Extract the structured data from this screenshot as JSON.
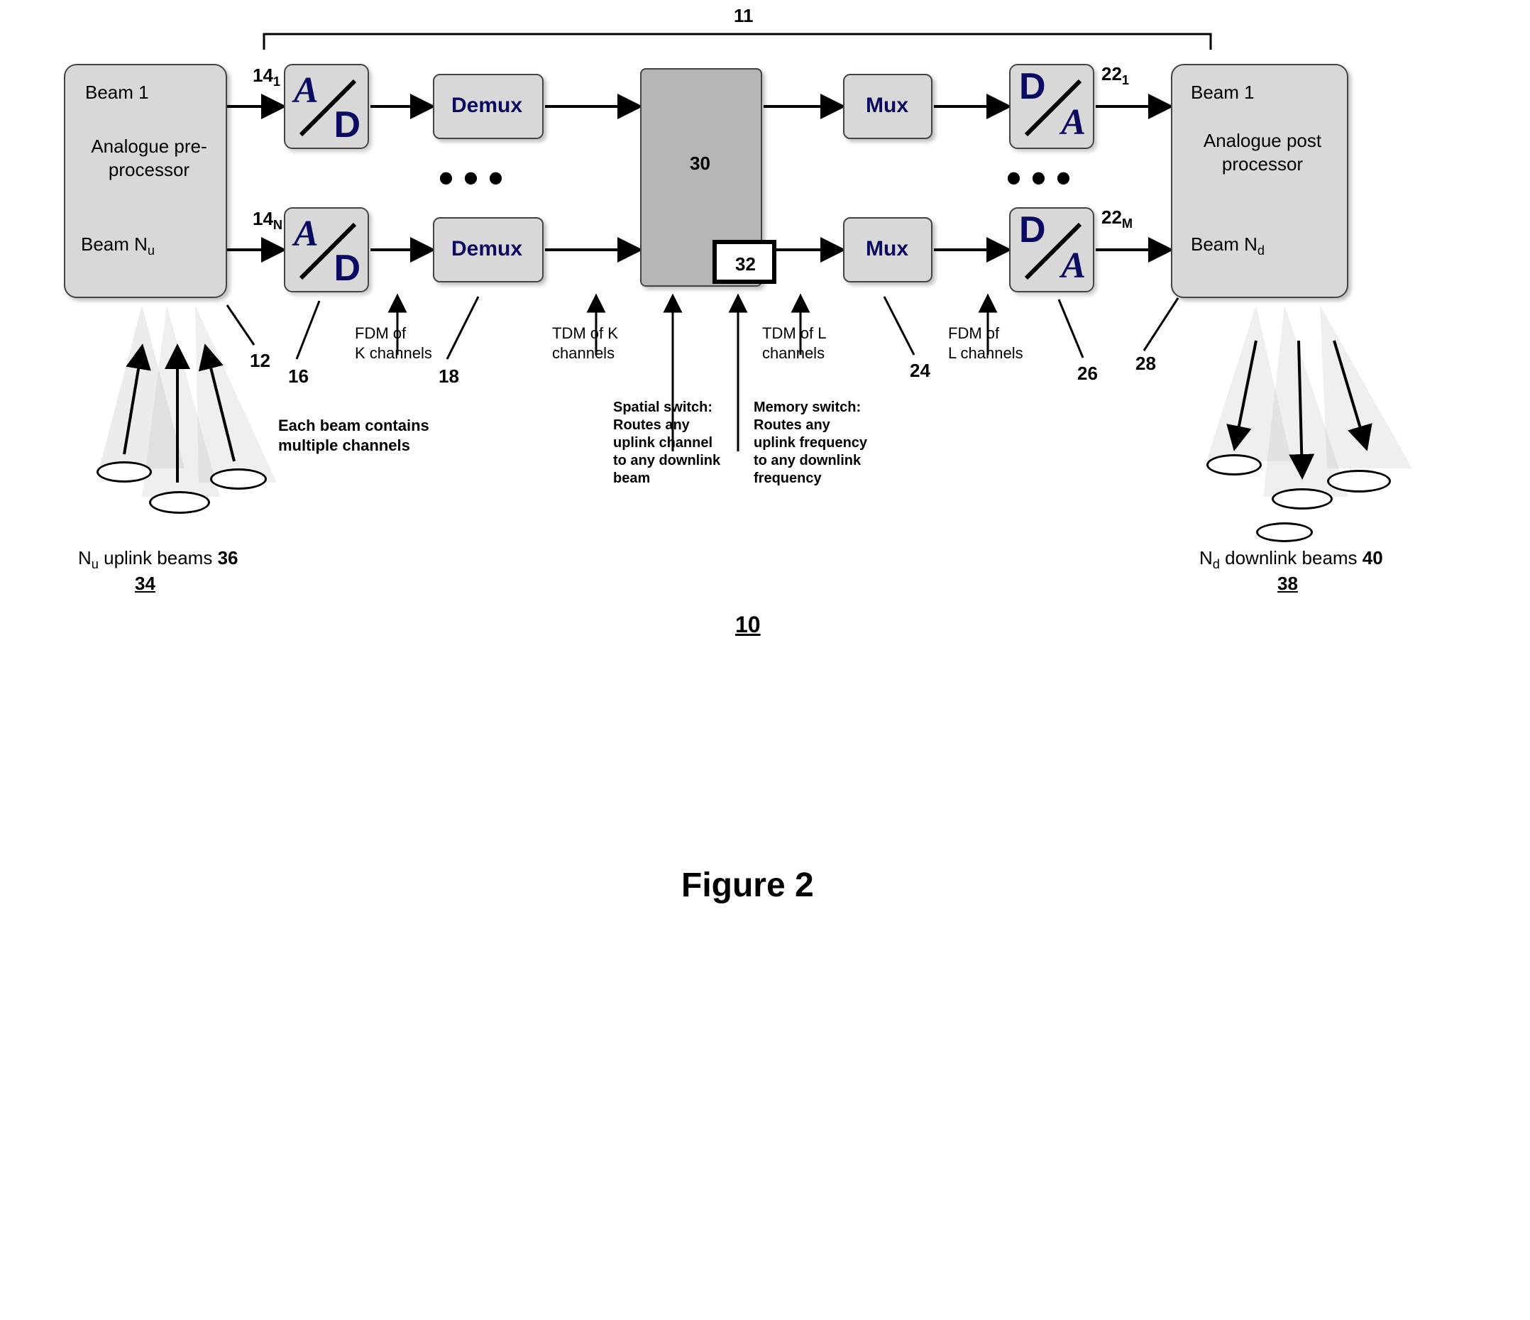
{
  "figure": {
    "caption": "Figure 2",
    "main_ref": "10",
    "dsp_ref": "11"
  },
  "pre": {
    "beam1": "Beam 1",
    "title": "Analogue pre-processor",
    "beamN_html": "Beam N<span class='sub'>u</span>",
    "ref": "12"
  },
  "post": {
    "beam1": "Beam 1",
    "title": "Analogue post processor",
    "beamN_html": "Beam N<span class='sub'>d</span>",
    "ref": "28"
  },
  "ad": {
    "ref_top_html": "14<span class='sub'>1</span>",
    "ref_bot_html": "14<span class='sub'>N</span>",
    "group_ref": "16"
  },
  "da": {
    "ref_top_html": "22<span class='sub'>1</span>",
    "ref_bot_html": "22<span class='sub'>M</span>",
    "group_ref": "26"
  },
  "demux": {
    "label": "Demux",
    "ref": "18"
  },
  "mux": {
    "label": "Mux",
    "ref": "24"
  },
  "switch": {
    "ref": "30",
    "mem_ref": "32"
  },
  "captions": {
    "fdmK": "FDM of\nK channels",
    "tdmK": "TDM of K\nchannels",
    "tdmL": "TDM of L\nchannels",
    "fdmL": "FDM of\nL channels",
    "beam_note": "Each beam contains\nmultiple channels",
    "spatial": "Spatial switch:\nRoutes any\nuplink channel\nto any downlink\nbeam",
    "memory": "Memory switch:\nRoutes any\nuplink frequency\nto any downlink\nfrequency"
  },
  "uplink": {
    "text_html": "N<span class='sub'>u</span> uplink beams <b>36</b>",
    "ref": "34"
  },
  "downlink": {
    "text_html": "N<span class='sub'>d</span> downlink beams <b>40</b>",
    "ref": "38"
  },
  "colors": {
    "block_fill": "#d8d8d8",
    "switch_fill": "#b5b5b5",
    "stroke": "#000000",
    "text_navy": "#0a0a60"
  }
}
